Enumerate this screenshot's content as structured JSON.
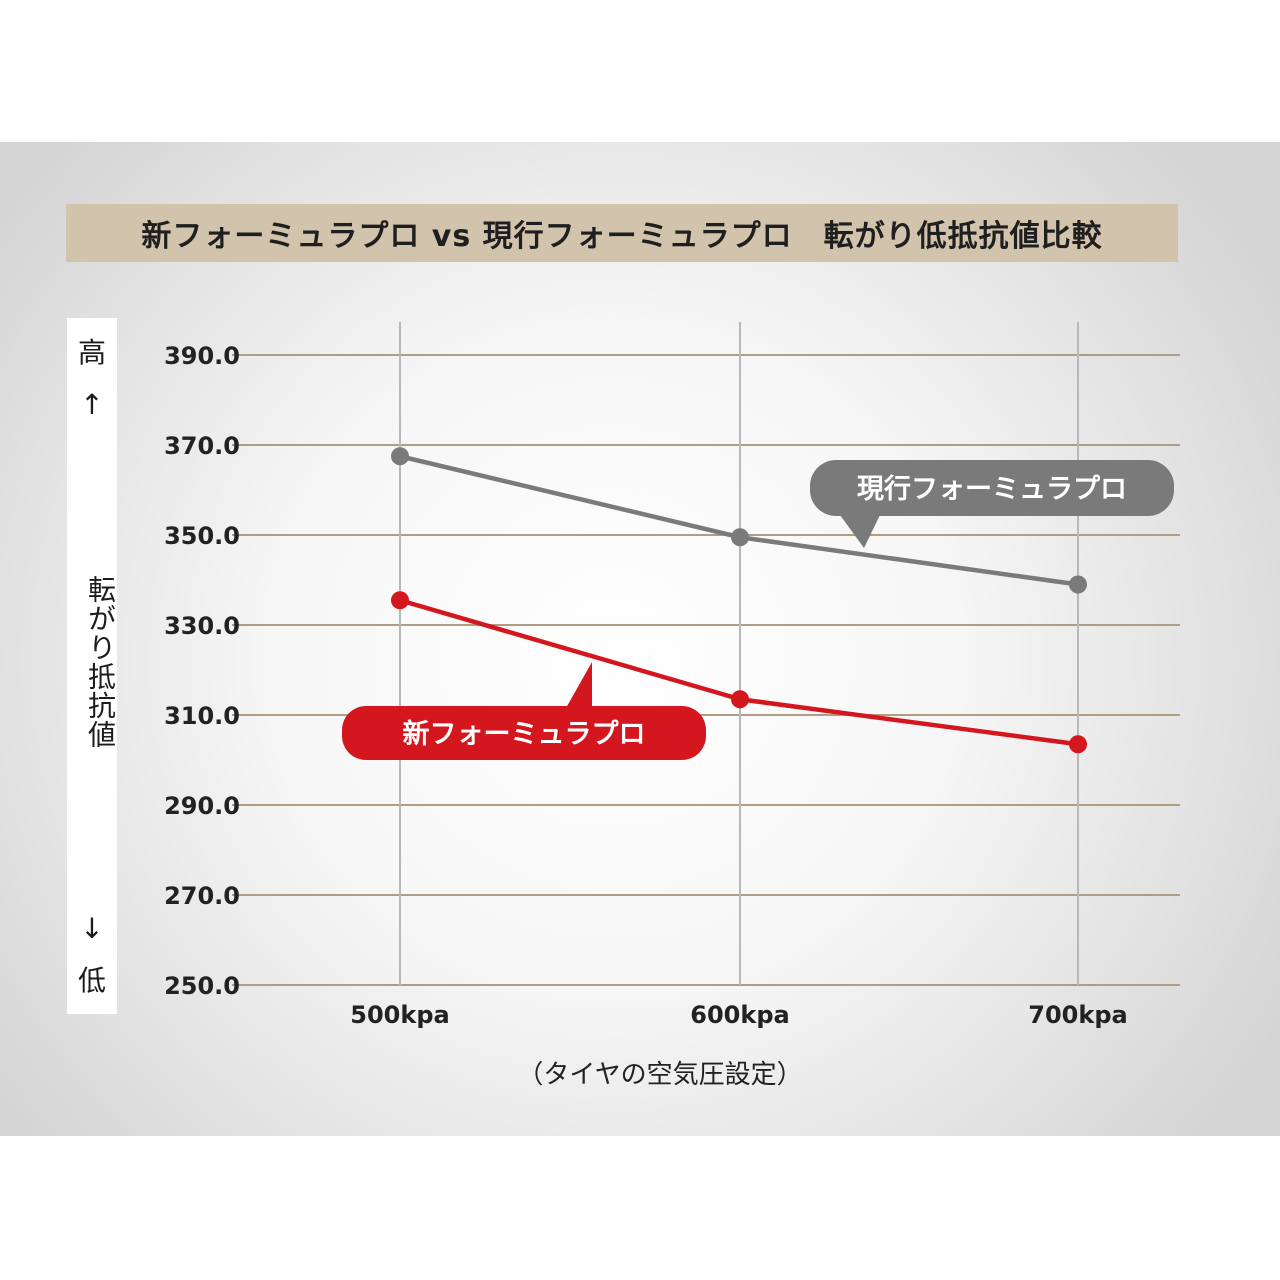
{
  "chart_data": {
    "type": "line",
    "title": "新フォーミュラプロ vs 現行フォーミュラプロ　転がり低抵抗値比較",
    "xlabel": "（タイヤの空気圧設定）",
    "ylabel": "転がり抵抗値",
    "ylabel_high": "高",
    "ylabel_low": "低",
    "ylabel_up_arrow": "↑",
    "ylabel_down_arrow": "↓",
    "categories": [
      "500kpa",
      "600kpa",
      "700kpa"
    ],
    "yticks": [
      "250.0",
      "270.0",
      "290.0",
      "310.0",
      "330.0",
      "350.0",
      "370.0",
      "390.0"
    ],
    "ylim": [
      250,
      390
    ],
    "grid": true,
    "series": [
      {
        "name": "現行フォーミュラプロ",
        "values": [
          367.5,
          349.5,
          339.0
        ],
        "color": "#7a7a7a"
      },
      {
        "name": "新フォーミュラプロ",
        "values": [
          335.5,
          313.5,
          303.5
        ],
        "color": "#d4171e"
      }
    ]
  }
}
